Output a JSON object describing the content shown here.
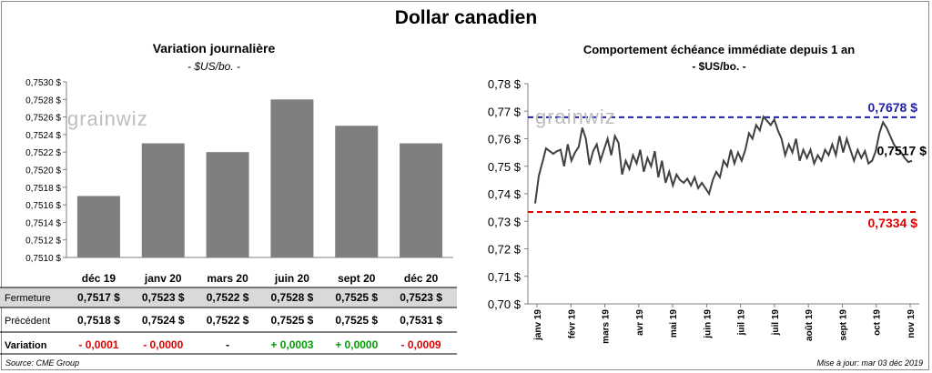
{
  "title": "Dollar canadien",
  "left": {
    "title": "Variation  journalière",
    "unit": "- $US/bo. -"
  },
  "right": {
    "title": "Comportement échéance immédiate depuis 1 an",
    "unit": "- $US/bo. -"
  },
  "source": "Source: CME Group",
  "updated": "Mise à jour: mar 03 déc 2019",
  "watermark": "grainwiz",
  "colors": {
    "bar": "#7f7f7f",
    "line": "#404040",
    "high": "#1f1fa8",
    "low": "#e00000",
    "positive": "#00a000",
    "negative": "#e00000",
    "band": "#d9d9d9"
  },
  "table": {
    "rows": [
      {
        "label": "Fermeture",
        "values": [
          "0,7517  $",
          "0,7523  $",
          "0,7522  $",
          "0,7528  $",
          "0,7525  $",
          "0,7523  $"
        ]
      },
      {
        "label": "Précédent",
        "values": [
          "0,7518  $",
          "0,7524  $",
          "0,7522  $",
          "0,7525  $",
          "0,7525  $",
          "0,7531  $"
        ]
      }
    ],
    "variation": {
      "label": "Variation",
      "values": [
        "- 0,0001",
        "- 0,0000",
        "-",
        "+ 0,0003",
        "+ 0,0000",
        "- 0,0009"
      ],
      "signs": [
        "neg",
        "neg",
        "zero",
        "pos",
        "pos",
        "neg"
      ]
    }
  },
  "chart_data": [
    {
      "type": "bar",
      "categories": [
        "déc 19",
        "janv 20",
        "mars 20",
        "juin 20",
        "sept 20",
        "déc 20"
      ],
      "values": [
        0.7517,
        0.7523,
        0.7522,
        0.7528,
        0.7525,
        0.7523
      ],
      "ylim": [
        0.751,
        0.753
      ],
      "yticks": [
        "0,7510 $",
        "0,7512 $",
        "0,7514 $",
        "0,7516 $",
        "0,7518 $",
        "0,7520 $",
        "0,7522 $",
        "0,7524 $",
        "0,7526 $",
        "0,7528 $",
        "0,7530 $"
      ],
      "grid": false
    },
    {
      "type": "line",
      "ylim": [
        0.7,
        0.78
      ],
      "yticks": [
        "0,70 $",
        "0,71 $",
        "0,72 $",
        "0,73 $",
        "0,74 $",
        "0,75 $",
        "0,76 $",
        "0,77 $",
        "0,78 $"
      ],
      "xticks": [
        "janv 19",
        "févr 19",
        "mars 19",
        "avr 19",
        "mai 19",
        "juin 19",
        "juil 19",
        "juil 19",
        "août 19",
        "sept 19",
        "oct 19",
        "nov 19"
      ],
      "y": [
        0.7365,
        0.7465,
        0.7515,
        0.7565,
        0.7555,
        0.7545,
        0.7555,
        0.756,
        0.75,
        0.758,
        0.752,
        0.755,
        0.757,
        0.764,
        0.76,
        0.7505,
        0.7555,
        0.758,
        0.752,
        0.756,
        0.76,
        0.754,
        0.761,
        0.7585,
        0.747,
        0.752,
        0.749,
        0.754,
        0.751,
        0.756,
        0.748,
        0.753,
        0.75,
        0.7555,
        0.746,
        0.752,
        0.744,
        0.748,
        0.743,
        0.747,
        0.745,
        0.744,
        0.7455,
        0.743,
        0.746,
        0.742,
        0.744,
        0.742,
        0.74,
        0.745,
        0.748,
        0.746,
        0.752,
        0.75,
        0.756,
        0.751,
        0.755,
        0.752,
        0.756,
        0.762,
        0.76,
        0.765,
        0.763,
        0.768,
        0.7665,
        0.765,
        0.767,
        0.763,
        0.76,
        0.754,
        0.758,
        0.755,
        0.76,
        0.752,
        0.756,
        0.753,
        0.756,
        0.751,
        0.754,
        0.752,
        0.756,
        0.754,
        0.758,
        0.754,
        0.761,
        0.755,
        0.76,
        0.756,
        0.752,
        0.756,
        0.753,
        0.7555,
        0.751,
        0.752,
        0.7555,
        0.762,
        0.766,
        0.764,
        0.761,
        0.758,
        0.756,
        0.755,
        0.753,
        0.7515,
        0.752
      ],
      "reference_lines": [
        {
          "value": 0.7678,
          "label": "0,7678  $",
          "style": "dashed",
          "color": "#1f1fa8"
        },
        {
          "value": 0.7334,
          "label": "0,7334  $",
          "style": "dashed",
          "color": "#e00000"
        }
      ],
      "last_label": "0,7517 $",
      "grid": false
    }
  ]
}
